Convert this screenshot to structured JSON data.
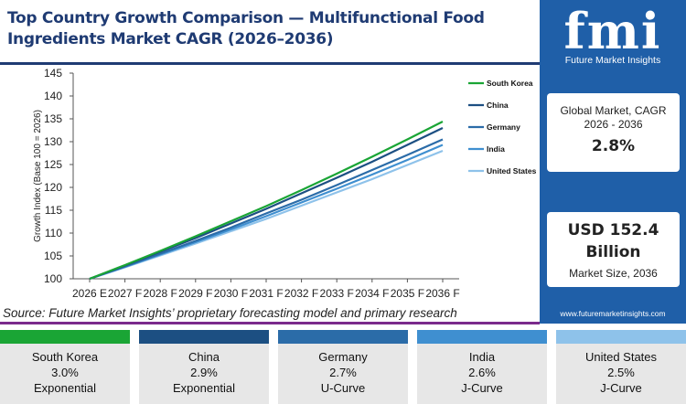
{
  "header": {
    "title": "Top Country Growth Comparison — Multifunctional Food Ingredients Market CAGR (2026–2036)"
  },
  "source": "Source: Future Market Insights’ proprietary forecasting model and primary research",
  "sidebar": {
    "logo_text": "fmi",
    "logo_sub": "Future Market Insights",
    "card1_label": "Global Market, CAGR 2026 - 2036",
    "card1_value": "2.8%",
    "card2_value": "USD 152.4 Billion",
    "card2_label": "Market Size, 2036",
    "website": "www.futuremarketinsights.com"
  },
  "colors": {
    "title": "#1f3b73",
    "sidebar": "#1f5fa8",
    "source_rule": "#7a2a8c",
    "south_korea": "#1aa535",
    "china": "#1c4f82",
    "germany": "#2b6ca8",
    "india": "#3f8fd0",
    "united_states": "#8ec2ea"
  },
  "chart_data": {
    "type": "line",
    "ylabel": "Growth Index (Base 100 = 2026)",
    "xlabel": "",
    "ylim": [
      100,
      145
    ],
    "yticks": [
      100,
      105,
      110,
      115,
      120,
      125,
      130,
      135,
      140,
      145
    ],
    "categories": [
      "2026 E",
      "2027 F",
      "2028 F",
      "2029 F",
      "2030 F",
      "2031 F",
      "2032 F",
      "2033 F",
      "2034 F",
      "2035 F",
      "2036 F"
    ],
    "series": [
      {
        "name": "South Korea",
        "color": "#1aa535",
        "values": [
          100,
          103.0,
          106.1,
          109.3,
          112.6,
          115.9,
          119.4,
          123.0,
          126.7,
          130.5,
          134.4
        ]
      },
      {
        "name": "China",
        "color": "#1c4f82",
        "values": [
          100,
          102.9,
          105.9,
          108.9,
          112.1,
          115.3,
          118.7,
          122.1,
          125.6,
          129.3,
          133.0
        ]
      },
      {
        "name": "Germany",
        "color": "#2b6ca8",
        "values": [
          100,
          102.7,
          105.5,
          108.3,
          111.2,
          114.3,
          117.3,
          120.5,
          123.8,
          127.1,
          130.5
        ]
      },
      {
        "name": "India",
        "color": "#3f8fd0",
        "values": [
          100,
          102.6,
          105.3,
          108.0,
          110.8,
          113.7,
          116.7,
          119.7,
          122.8,
          126.0,
          129.3
        ]
      },
      {
        "name": "United States",
        "color": "#8ec2ea",
        "values": [
          100,
          102.5,
          105.1,
          107.7,
          110.4,
          113.1,
          116.0,
          118.9,
          121.8,
          124.9,
          128.0
        ]
      }
    ],
    "legend_position": "right",
    "grid": false
  },
  "tiles": [
    {
      "name": "South Korea",
      "cagr": "3.0%",
      "type": "Exponential",
      "color": "#1aa535"
    },
    {
      "name": "China",
      "cagr": "2.9%",
      "type": "Exponential",
      "color": "#1c4f82"
    },
    {
      "name": "Germany",
      "cagr": "2.7%",
      "type": "U-Curve",
      "color": "#2b6ca8"
    },
    {
      "name": "India",
      "cagr": "2.6%",
      "type": "J-Curve",
      "color": "#3f8fd0"
    },
    {
      "name": "United States",
      "cagr": "2.5%",
      "type": "J-Curve",
      "color": "#8ec2ea"
    }
  ]
}
